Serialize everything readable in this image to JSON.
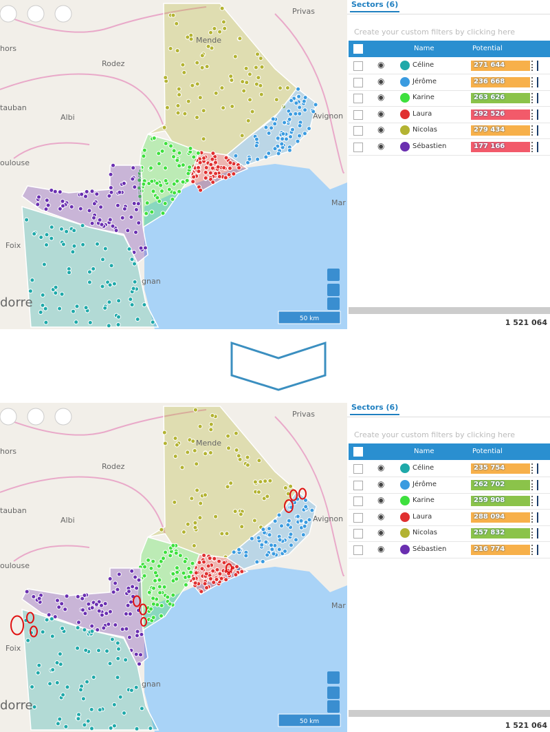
{
  "panels": [
    {
      "map": {
        "labels": [
          "Privas",
          "Mende",
          "Rodez",
          "Albi",
          "Avignon",
          "Foix",
          "Mar",
          "gnan",
          "dorre",
          "hors",
          "tauban",
          "oulouse"
        ],
        "scale": "50 km"
      },
      "sidebar": {
        "tab": "Sectors (6)",
        "filter_hint": "Create your custom filters by clicking here",
        "columns": [
          "Name",
          "Potential"
        ],
        "rows": [
          {
            "name": "Céline",
            "color": "#1fa9a9",
            "potential": "271 644",
            "bar_color": "#f7b04a"
          },
          {
            "name": "Jérôme",
            "color": "#3a9be0",
            "potential": "236 668",
            "bar_color": "#f7b04a"
          },
          {
            "name": "Karine",
            "color": "#3ee03e",
            "potential": "263 626",
            "bar_color": "#8bc34a"
          },
          {
            "name": "Laura",
            "color": "#e03030",
            "potential": "292 526",
            "bar_color": "#f25a6a"
          },
          {
            "name": "Nicolas",
            "color": "#b3b332",
            "potential": "279 434",
            "bar_color": "#f7b04a"
          },
          {
            "name": "Sébastien",
            "color": "#6a2fb0",
            "potential": "177 166",
            "bar_color": "#f25a6a"
          }
        ],
        "total": "1 521 064"
      }
    },
    {
      "map": {
        "labels": [
          "Privas",
          "Mende",
          "Rodez",
          "Albi",
          "Avignon",
          "Foix",
          "Mar",
          "gnan",
          "dorre",
          "hors",
          "tauban",
          "oulouse"
        ],
        "scale": "50 km"
      },
      "sidebar": {
        "tab": "Sectors (6)",
        "filter_hint": "Create your custom filters by clicking here",
        "columns": [
          "Name",
          "Potential"
        ],
        "rows": [
          {
            "name": "Céline",
            "color": "#1fa9a9",
            "potential": "235 754",
            "bar_color": "#f7b04a"
          },
          {
            "name": "Jérôme",
            "color": "#3a9be0",
            "potential": "262 702",
            "bar_color": "#8bc34a"
          },
          {
            "name": "Karine",
            "color": "#3ee03e",
            "potential": "259 908",
            "bar_color": "#8bc34a"
          },
          {
            "name": "Laura",
            "color": "#e03030",
            "potential": "288 094",
            "bar_color": "#f7b04a"
          },
          {
            "name": "Nicolas",
            "color": "#b3b332",
            "potential": "257 832",
            "bar_color": "#8bc34a"
          },
          {
            "name": "Sébastien",
            "color": "#6a2fb0",
            "potential": "216 774",
            "bar_color": "#f7b04a"
          }
        ],
        "total": "1 521 064"
      }
    }
  ]
}
